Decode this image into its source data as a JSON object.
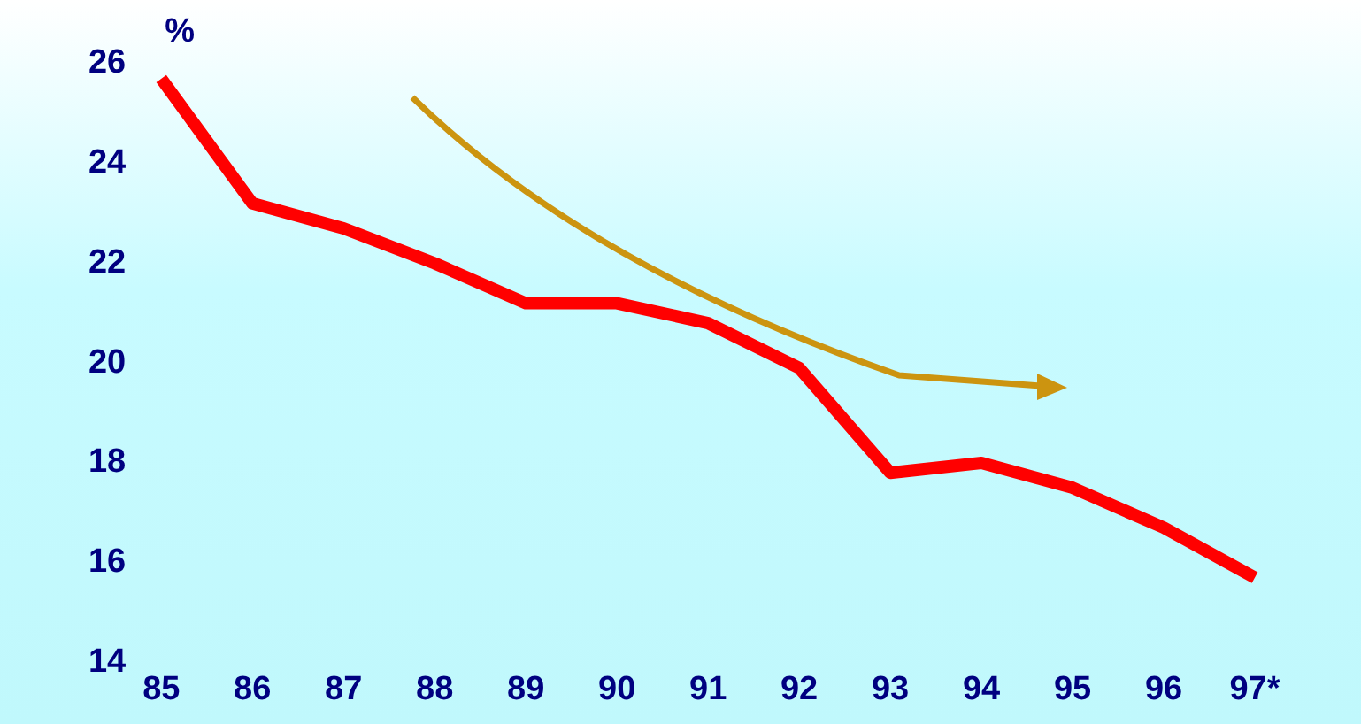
{
  "chart_data": {
    "type": "line",
    "ylabel": "%",
    "categories": [
      "85",
      "86",
      "87",
      "88",
      "89",
      "90",
      "91",
      "92",
      "93",
      "94",
      "95",
      "96",
      "97*"
    ],
    "series": [
      {
        "color": "#ff0000",
        "values": [
          25.7,
          23.2,
          22.7,
          22.0,
          21.2,
          21.2,
          20.8,
          19.9,
          17.8,
          18.0,
          17.5,
          16.7,
          15.7
        ]
      }
    ],
    "ylim": [
      14,
      26
    ],
    "yticks": [
      14,
      16,
      18,
      20,
      22,
      24,
      26
    ],
    "grid": false,
    "legend": false,
    "marker": "none",
    "line_style": "solid"
  }
}
